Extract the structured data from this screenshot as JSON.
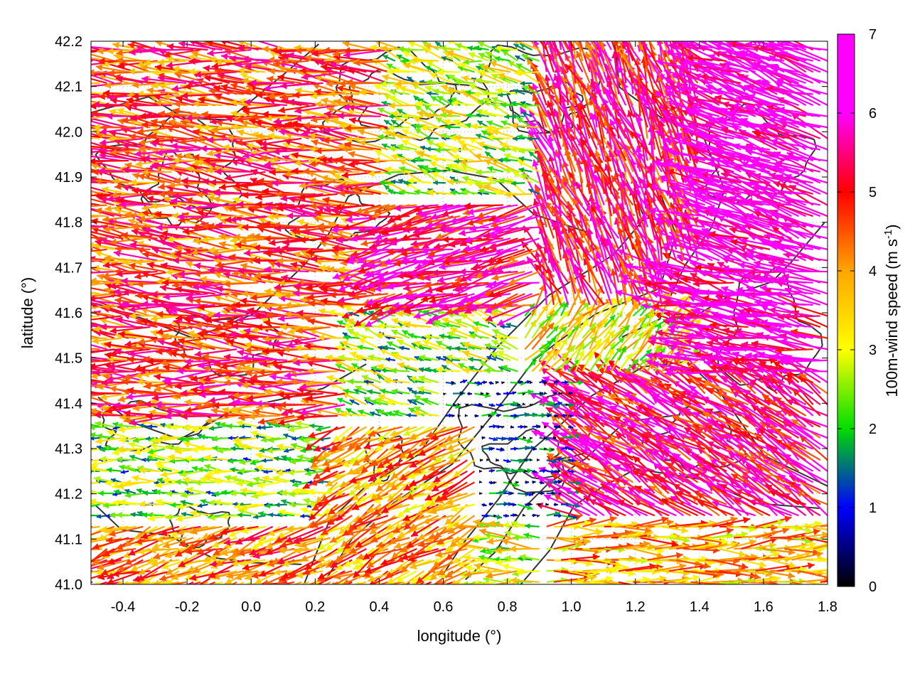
{
  "chart_data": {
    "type": "vector-field",
    "xlabel": "longitude (°)",
    "ylabel": "latitude (°)",
    "xlim": [
      -0.5,
      1.8
    ],
    "ylim": [
      41.0,
      42.2
    ],
    "xticks": [
      -0.4,
      -0.2,
      0.0,
      0.2,
      0.4,
      0.6,
      0.8,
      1.0,
      1.2,
      1.4,
      1.6,
      1.8
    ],
    "yticks": [
      41.0,
      41.1,
      41.2,
      41.3,
      41.4,
      41.5,
      41.6,
      41.7,
      41.8,
      41.9,
      42.0,
      42.1,
      42.2
    ],
    "grid": "dotted",
    "colorbar": {
      "label": "100m-wind speed (m s-1)",
      "label_main": "100m-wind speed (m s",
      "label_sup": "-1",
      "label_end": ")",
      "range": [
        0,
        7
      ],
      "ticks": [
        0,
        1,
        2,
        3,
        4,
        5,
        6,
        7
      ],
      "colors": [
        "#000000",
        "#0000ff",
        "#00dd00",
        "#ffff00",
        "#ffa500",
        "#ff0000",
        "#ff00ff"
      ]
    },
    "wind_regions": [
      {
        "x": [
          -0.5,
          0.45
        ],
        "y": [
          41.5,
          42.2
        ],
        "u": -1.0,
        "v": 0.1,
        "speed": 4.6
      },
      {
        "x": [
          -0.5,
          0.3
        ],
        "y": [
          41.35,
          41.5
        ],
        "u": -1.0,
        "v": 0.0,
        "speed": 4.8
      },
      {
        "x": [
          -0.5,
          0.25
        ],
        "y": [
          41.15,
          41.35
        ],
        "u": -1.0,
        "v": 0.05,
        "speed": 2.2
      },
      {
        "x": [
          -0.5,
          0.4
        ],
        "y": [
          41.0,
          41.15
        ],
        "u": -0.9,
        "v": -0.3,
        "speed": 4.2
      },
      {
        "x": [
          0.45,
          0.95
        ],
        "y": [
          41.6,
          42.2
        ],
        "u": -0.7,
        "v": 0.2,
        "speed": 2.6
      },
      {
        "x": [
          0.4,
          1.2
        ],
        "y": [
          41.6,
          41.85
        ],
        "u": -1.0,
        "v": -0.25,
        "speed": 5.4
      },
      {
        "x": [
          0.9,
          1.45
        ],
        "y": [
          41.6,
          42.2
        ],
        "u": -0.3,
        "v": 0.8,
        "speed": 5.2
      },
      {
        "x": [
          1.4,
          1.8
        ],
        "y": [
          41.7,
          42.2
        ],
        "u": -1.0,
        "v": 0.35,
        "speed": 6.3
      },
      {
        "x": [
          1.3,
          1.8
        ],
        "y": [
          41.45,
          41.7
        ],
        "u": -1.0,
        "v": 0.2,
        "speed": 6.0
      },
      {
        "x": [
          0.85,
          1.35
        ],
        "y": [
          41.35,
          41.6
        ],
        "u": 0.5,
        "v": 0.6,
        "speed": 3.2
      },
      {
        "x": [
          0.3,
          0.85
        ],
        "y": [
          41.35,
          41.6
        ],
        "u": -0.9,
        "v": 0.3,
        "speed": 2.4
      },
      {
        "x": [
          0.6,
          1.0
        ],
        "y": [
          41.15,
          41.45
        ],
        "u": 1.0,
        "v": 0.0,
        "speed": 0.9
      },
      {
        "x": [
          1.0,
          1.8
        ],
        "y": [
          41.15,
          41.45
        ],
        "u": -0.8,
        "v": 0.5,
        "speed": 5.4
      },
      {
        "x": [
          0.9,
          1.8
        ],
        "y": [
          41.0,
          41.15
        ],
        "u": 1.0,
        "v": 0.0,
        "speed": 3.8
      },
      {
        "x": [
          0.25,
          0.7
        ],
        "y": [
          41.0,
          41.35
        ],
        "u": -0.8,
        "v": -0.4,
        "speed": 4.0
      }
    ]
  }
}
